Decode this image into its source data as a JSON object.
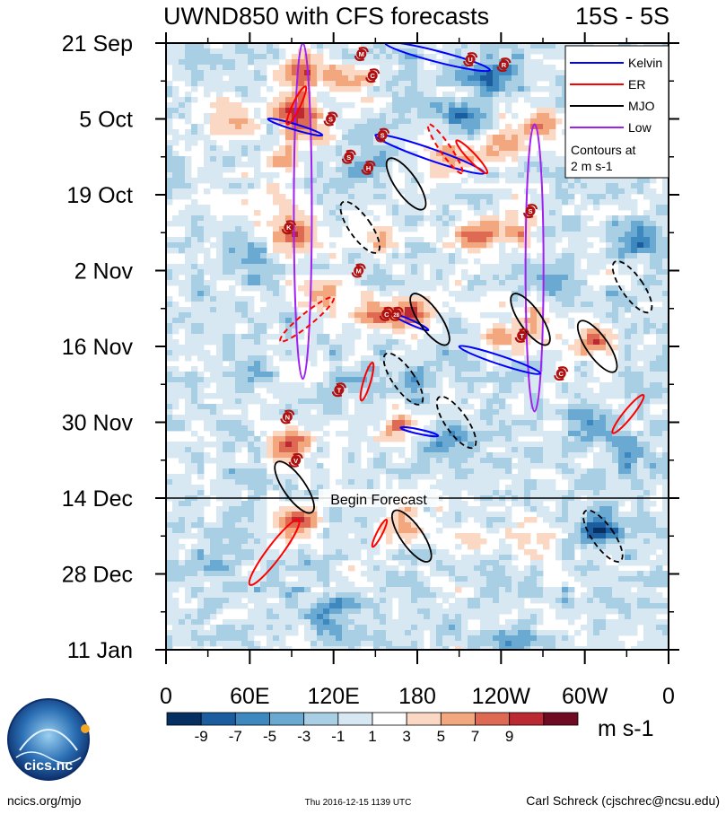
{
  "chart_data": {
    "type": "heatmap",
    "title": "UWND850 with CFS forecasts",
    "subtitle": "15S - 5S",
    "xlabel": "",
    "ylabel": "",
    "x_range_deg_east": [
      0,
      360
    ],
    "x_ticks": [
      {
        "lon": 0,
        "label": "0"
      },
      {
        "lon": 60,
        "label": "60E"
      },
      {
        "lon": 120,
        "label": "120E"
      },
      {
        "lon": 180,
        "label": "180"
      },
      {
        "lon": 240,
        "label": "120W"
      },
      {
        "lon": 300,
        "label": "60W"
      },
      {
        "lon": 360,
        "label": "0"
      }
    ],
    "y_range_days": [
      0,
      112
    ],
    "y_ticks": [
      {
        "day": 0,
        "label": "21 Sep"
      },
      {
        "day": 14,
        "label": "5 Oct"
      },
      {
        "day": 28,
        "label": "19 Oct"
      },
      {
        "day": 42,
        "label": "2 Nov"
      },
      {
        "day": 56,
        "label": "16 Nov"
      },
      {
        "day": 70,
        "label": "30 Nov"
      },
      {
        "day": 84,
        "label": "14 Dec"
      },
      {
        "day": 98,
        "label": "28 Dec"
      },
      {
        "day": 112,
        "label": "11 Jan"
      }
    ],
    "forecast_start_day": 84,
    "forecast_label": "Begin Forecast",
    "colorbar": {
      "units": "m s-1",
      "levels": [
        -9,
        -7,
        -5,
        -3,
        -1,
        1,
        3,
        5,
        7,
        9
      ],
      "labels": [
        "-9",
        "-7",
        "-5",
        "-3",
        "-1",
        "1",
        "3",
        "5",
        "7",
        "9"
      ],
      "colors": [
        "#053061",
        "#1c5d9f",
        "#3c88bf",
        "#6aa9d1",
        "#a8cfe4",
        "#d7e8f2",
        "#ffffff",
        "#fbd8c4",
        "#f3a77f",
        "#de6a53",
        "#bb2a33",
        "#6e0b22"
      ]
    },
    "legend": {
      "position": "top-right",
      "entries": [
        {
          "label": "Kelvin",
          "color": "#0000ff"
        },
        {
          "label": "ER",
          "color": "#ff0000"
        },
        {
          "label": "MJO",
          "color": "#000000"
        },
        {
          "label": "Low",
          "color": "#a020f0"
        }
      ],
      "note_line1": "Contours at",
      "note_line2": "2 m s-1"
    },
    "anomalies": [
      {
        "lon": 47,
        "day": 14,
        "value": 6
      },
      {
        "lon": 90,
        "day": 12,
        "value": 8
      },
      {
        "lon": 100,
        "day": 16,
        "value": 6
      },
      {
        "lon": 82,
        "day": 22,
        "value": 5
      },
      {
        "lon": 100,
        "day": 5,
        "value": 7
      },
      {
        "lon": 132,
        "day": 7,
        "value": 6
      },
      {
        "lon": 95,
        "day": 36,
        "value": 8
      },
      {
        "lon": 88,
        "day": 30,
        "value": 5
      },
      {
        "lon": 150,
        "day": 36,
        "value": 4
      },
      {
        "lon": 110,
        "day": 46,
        "value": 4
      },
      {
        "lon": 148,
        "day": 50,
        "value": 7
      },
      {
        "lon": 178,
        "day": 50,
        "value": 8
      },
      {
        "lon": 220,
        "day": 36,
        "value": 9
      },
      {
        "lon": 250,
        "day": 34,
        "value": 6
      },
      {
        "lon": 208,
        "day": 21,
        "value": 8
      },
      {
        "lon": 245,
        "day": 18,
        "value": 7
      },
      {
        "lon": 270,
        "day": 14,
        "value": 6
      },
      {
        "lon": 240,
        "day": 54,
        "value": 7
      },
      {
        "lon": 270,
        "day": 52,
        "value": 5
      },
      {
        "lon": 305,
        "day": 55,
        "value": 7
      },
      {
        "lon": 90,
        "day": 74,
        "value": 9
      },
      {
        "lon": 95,
        "day": 88,
        "value": 8
      },
      {
        "lon": 168,
        "day": 88,
        "value": 7
      },
      {
        "lon": 168,
        "day": 70,
        "value": 6
      },
      {
        "lon": 260,
        "day": 92,
        "value": 5
      },
      {
        "lon": 220,
        "day": 92,
        "value": 4
      },
      {
        "lon": 210,
        "day": 14,
        "value": -5
      },
      {
        "lon": 232,
        "day": 6,
        "value": -7
      },
      {
        "lon": 140,
        "day": 22,
        "value": -4
      },
      {
        "lon": 300,
        "day": 70,
        "value": -5
      },
      {
        "lon": 310,
        "day": 90,
        "value": -8
      },
      {
        "lon": 340,
        "day": 36,
        "value": -6
      },
      {
        "lon": 120,
        "day": 105,
        "value": -5
      },
      {
        "lon": 60,
        "day": 60,
        "value": -3
      },
      {
        "lon": 180,
        "day": 62,
        "value": -4
      },
      {
        "lon": 200,
        "day": 74,
        "value": -5
      },
      {
        "lon": 280,
        "day": 44,
        "value": -3
      },
      {
        "lon": 330,
        "day": 76,
        "value": -4
      },
      {
        "lon": 140,
        "day": 64,
        "value": -3
      },
      {
        "lon": 30,
        "day": 96,
        "value": -3
      },
      {
        "lon": 250,
        "day": 110,
        "value": -3
      },
      {
        "lon": 170,
        "day": 102,
        "value": -2
      },
      {
        "lon": 60,
        "day": 40,
        "value": -3
      }
    ],
    "kelvin_waves": [
      {
        "lon": [
          157,
          232
        ],
        "day": [
          0,
          5
        ]
      },
      {
        "lon": [
          73,
          112
        ],
        "day": [
          14,
          17
        ]
      },
      {
        "lon": [
          150,
          228
        ],
        "day": [
          17,
          24
        ]
      },
      {
        "lon": [
          162,
          188
        ],
        "day": [
          50,
          53
        ]
      },
      {
        "lon": [
          210,
          268
        ],
        "day": [
          56,
          61
        ]
      },
      {
        "lon": [
          168,
          195
        ],
        "day": [
          71,
          72.5
        ]
      }
    ],
    "er_waves": [
      {
        "lon": [
          100,
          87
        ],
        "day": [
          8,
          15
        ],
        "dashed": false
      },
      {
        "lon": [
          188,
          212
        ],
        "day": [
          15,
          24
        ],
        "dashed": true
      },
      {
        "lon": [
          208,
          230
        ],
        "day": [
          18,
          24
        ],
        "dashed": false
      },
      {
        "lon": [
          120,
          82
        ],
        "day": [
          47,
          55
        ],
        "dashed": true
      },
      {
        "lon": [
          148,
          140
        ],
        "day": [
          59,
          66
        ],
        "dashed": false
      },
      {
        "lon": [
          342,
          320
        ],
        "day": [
          65,
          72
        ],
        "dashed": false
      },
      {
        "lon": [
          95,
          60
        ],
        "day": [
          88,
          100
        ],
        "dashed": false
      },
      {
        "lon": [
          158,
          148
        ],
        "day": [
          88,
          93
        ],
        "dashed": false
      }
    ],
    "mjo": [
      {
        "lon": 172,
        "day": 26,
        "dashed": false
      },
      {
        "lon": 139,
        "day": 34,
        "dashed": true
      },
      {
        "lon": 189,
        "day": 51,
        "dashed": false
      },
      {
        "lon": 261,
        "day": 51,
        "dashed": false
      },
      {
        "lon": 309,
        "day": 56,
        "dashed": false
      },
      {
        "lon": 334,
        "day": 45,
        "dashed": true
      },
      {
        "lon": 170,
        "day": 62,
        "dashed": true
      },
      {
        "lon": 208,
        "day": 70,
        "dashed": true
      },
      {
        "lon": 92,
        "day": 82,
        "dashed": false
      },
      {
        "lon": 176,
        "day": 91,
        "dashed": false
      },
      {
        "lon": 313,
        "day": 91,
        "dashed": true
      }
    ],
    "low_systems": [
      {
        "lon": 98,
        "day_range": [
          0,
          62
        ]
      },
      {
        "lon": 264,
        "day_range": [
          15,
          68
        ]
      }
    ],
    "storms": [
      {
        "lon": 140,
        "day": 2,
        "label": "M"
      },
      {
        "lon": 148,
        "day": 6,
        "label": "C"
      },
      {
        "lon": 218,
        "day": 3,
        "label": "U"
      },
      {
        "lon": 242,
        "day": 4,
        "label": "R"
      },
      {
        "lon": 118,
        "day": 14,
        "label": "S"
      },
      {
        "lon": 155,
        "day": 17,
        "label": "S"
      },
      {
        "lon": 131,
        "day": 21,
        "label": "S"
      },
      {
        "lon": 145,
        "day": 23,
        "label": "H"
      },
      {
        "lon": 88,
        "day": 34,
        "label": "K"
      },
      {
        "lon": 138,
        "day": 42,
        "label": "M"
      },
      {
        "lon": 261,
        "day": 31,
        "label": "S"
      },
      {
        "lon": 158,
        "day": 50,
        "label": "C"
      },
      {
        "lon": 165,
        "day": 50,
        "label": "28"
      },
      {
        "lon": 255,
        "day": 54,
        "label": "T"
      },
      {
        "lon": 283,
        "day": 61,
        "label": "C"
      },
      {
        "lon": 124,
        "day": 64,
        "label": "T"
      },
      {
        "lon": 87,
        "day": 69,
        "label": "N"
      },
      {
        "lon": 93,
        "day": 77,
        "label": "V"
      }
    ]
  },
  "footer": {
    "logo_text": "cics.nc",
    "website": "ncics.org/mjo",
    "timestamp": "Thu 2016-12-15 1139 UTC",
    "author": "Carl Schreck (cjschrec@ncsu.edu)"
  }
}
